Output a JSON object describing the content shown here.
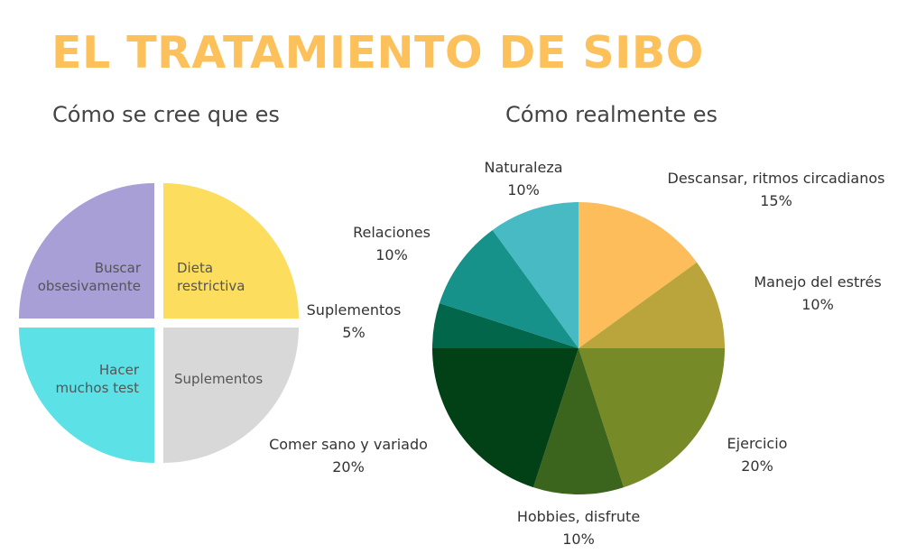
{
  "title": "EL TRATAMIENTO DE SIBO",
  "chart_data": [
    {
      "type": "pie",
      "title": "Cómo se cree que es",
      "slices": [
        {
          "label": "Dieta\nrestrictiva",
          "value": 25,
          "color": "#fcdd5e"
        },
        {
          "label": "Suplementos",
          "value": 25,
          "color": "#d8d8d8"
        },
        {
          "label": "Hacer\nmuchos test",
          "value": 25,
          "color": "#5ce1e6"
        },
        {
          "label": "Buscar\nobsesivamente",
          "value": 25,
          "color": "#a79fd6"
        }
      ],
      "annotations": [
        {
          "label": "Suplementos",
          "value": "5%"
        },
        {
          "label": "Comer sano y variado",
          "value": "20%"
        }
      ]
    },
    {
      "type": "pie",
      "title": "Cómo realmente es",
      "slices": [
        {
          "label": "Descansar, ritmos circadianos",
          "value": 15,
          "display": "15%",
          "color": "#fdbd5b"
        },
        {
          "label": "Manejo del estrés",
          "value": 10,
          "display": "10%",
          "color": "#b9a53b"
        },
        {
          "label": "Ejercicio",
          "value": 20,
          "display": "20%",
          "color": "#768a27"
        },
        {
          "label": "Hobbies, disfrute",
          "value": 10,
          "display": "10%",
          "color": "#3b641c"
        },
        {
          "label": "Comer sano y variado",
          "value": 20,
          "display": "20%",
          "color": "#024116"
        },
        {
          "label": "Suplementos",
          "value": 5,
          "display": "5%",
          "color": "#02664a"
        },
        {
          "label": "Relaciones",
          "value": 10,
          "display": "10%",
          "color": "#16928a"
        },
        {
          "label": "Naturaleza",
          "value": 10,
          "display": "10%",
          "color": "#48bac4"
        }
      ]
    }
  ]
}
